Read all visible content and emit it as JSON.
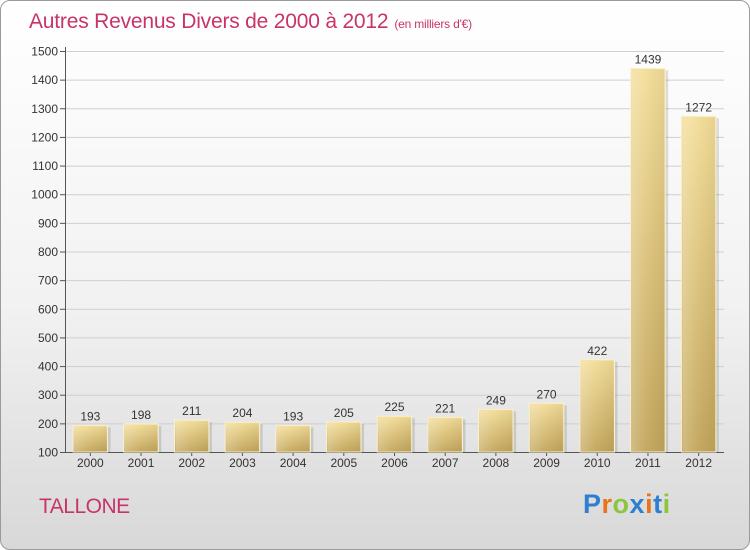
{
  "header": {
    "title": "Autres Revenus Divers de 2000 à 2012",
    "subtitle": "(en milliers d'€)"
  },
  "footer": {
    "commune": "TALLONE",
    "logo_letters": [
      "P",
      "r",
      "o",
      "x",
      "i",
      "t",
      "i"
    ],
    "logo_colors": [
      "#2f7fd0",
      "#e8731a",
      "#8cc63f",
      "#2f7fd0",
      "#e8731a",
      "#2f7fd0",
      "#8cc63f"
    ]
  },
  "chart_data": {
    "type": "bar",
    "title": "Autres Revenus Divers de 2000 à 2012",
    "subtitle": "(en milliers d'€)",
    "xlabel": "",
    "ylabel": "",
    "categories": [
      "2000",
      "2001",
      "2002",
      "2003",
      "2004",
      "2005",
      "2006",
      "2007",
      "2008",
      "2009",
      "2010",
      "2011",
      "2012"
    ],
    "values": [
      193,
      198,
      211,
      204,
      193,
      205,
      225,
      221,
      249,
      270,
      422,
      1439,
      1272
    ],
    "ylim": [
      100,
      1500
    ],
    "yticks": [
      100,
      200,
      300,
      400,
      500,
      600,
      700,
      800,
      900,
      1000,
      1100,
      1200,
      1300,
      1400,
      1500
    ],
    "grid": "horizontal",
    "bar_color": "#e8cf88",
    "bar_color_dark": "#c7a95c"
  }
}
